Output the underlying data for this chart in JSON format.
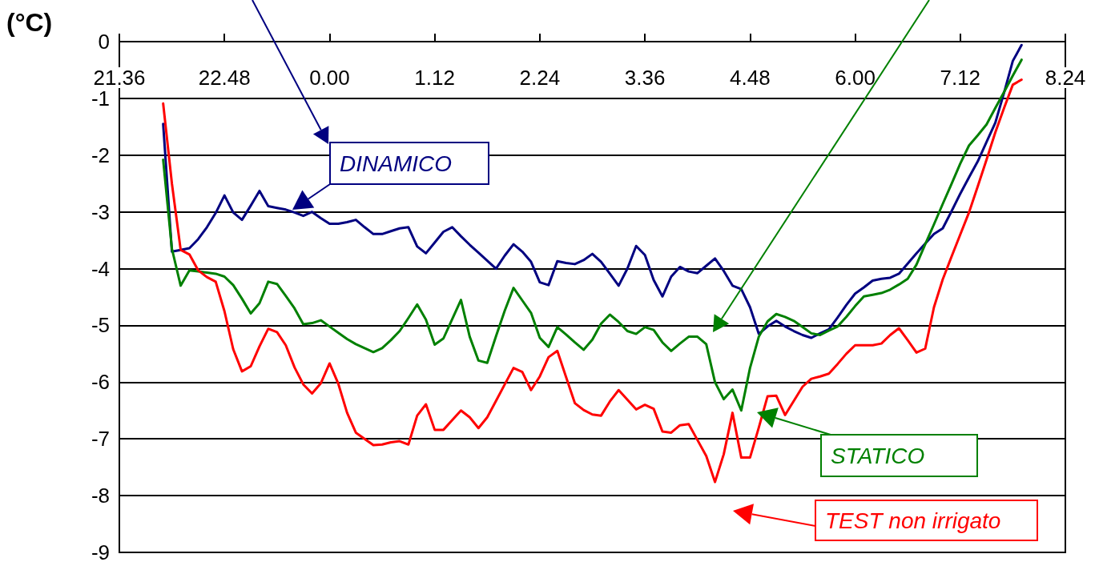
{
  "chart_data": {
    "type": "line",
    "ylabel": "(°C)",
    "categories": [
      "21.36",
      null,
      null,
      null,
      null,
      null,
      null,
      null,
      null,
      null,
      null,
      null,
      "22.48",
      null,
      null,
      null,
      null,
      null,
      null,
      null,
      null,
      null,
      null,
      null,
      "0.00",
      null,
      null,
      null,
      null,
      null,
      null,
      null,
      null,
      null,
      null,
      null,
      "1.12",
      null,
      null,
      null,
      null,
      null,
      null,
      null,
      null,
      null,
      null,
      null,
      "2.24",
      null,
      null,
      null,
      null,
      null,
      null,
      null,
      null,
      null,
      null,
      null,
      "3.36",
      null,
      null,
      null,
      null,
      null,
      null,
      null,
      null,
      null,
      null,
      null,
      "4.48",
      null,
      null,
      null,
      null,
      null,
      null,
      null,
      null,
      null,
      null,
      null,
      "6.00",
      null,
      null,
      null,
      null,
      null,
      null,
      null,
      null,
      null,
      null,
      null,
      "7.12",
      null,
      null,
      null,
      null,
      null,
      null,
      null,
      null,
      null,
      null,
      null,
      "8.24"
    ],
    "ylim": [
      -9,
      0
    ],
    "yticks": [
      0,
      -1,
      -2,
      -3,
      -4,
      -5,
      -6,
      -7,
      -8,
      -9
    ],
    "grid": "y",
    "marker": "none",
    "line_style": "solid",
    "series": [
      {
        "color": "#000080",
        "values": [
          null,
          null,
          null,
          null,
          null,
          -1.45,
          -3.7,
          -3.67,
          -3.64,
          -3.48,
          -3.27,
          -3.02,
          -2.71,
          -3.01,
          -3.14,
          -2.89,
          -2.63,
          -2.9,
          -2.93,
          -2.96,
          -3.01,
          -3.07,
          -3.0,
          -3.11,
          -3.21,
          -3.21,
          -3.18,
          -3.14,
          -3.27,
          -3.39,
          -3.39,
          -3.34,
          -3.29,
          -3.27,
          -3.61,
          -3.73,
          -3.54,
          -3.35,
          -3.27,
          -3.43,
          -3.58,
          -3.72,
          -3.86,
          -4.0,
          -3.77,
          -3.57,
          -3.7,
          -3.88,
          -4.24,
          -4.29,
          -3.87,
          -3.9,
          -3.92,
          -3.85,
          -3.74,
          -3.88,
          -4.09,
          -4.3,
          -4.0,
          -3.6,
          -3.76,
          -4.2,
          -4.49,
          -4.14,
          -3.97,
          -4.05,
          -4.08,
          -3.95,
          -3.82,
          -4.04,
          -4.3,
          -4.36,
          -4.68,
          -5.15,
          -5.02,
          -4.92,
          -5.02,
          -5.1,
          -5.17,
          -5.22,
          -5.14,
          -5.07,
          -4.86,
          -4.64,
          -4.44,
          -4.33,
          -4.21,
          -4.18,
          -4.16,
          -4.09,
          -3.91,
          -3.73,
          -3.56,
          -3.39,
          -3.29,
          -2.99,
          -2.68,
          -2.39,
          -2.11,
          -1.77,
          -1.43,
          -0.9,
          -0.34,
          -0.06,
          null,
          null,
          null,
          null,
          null
        ]
      },
      {
        "color": "#008000",
        "values": [
          null,
          null,
          null,
          null,
          null,
          -2.08,
          -3.65,
          -4.3,
          -4.03,
          -4.05,
          -4.07,
          -4.09,
          -4.14,
          -4.29,
          -4.53,
          -4.79,
          -4.61,
          -4.23,
          -4.27,
          -4.48,
          -4.7,
          -4.98,
          -4.96,
          -4.91,
          -5.02,
          -5.13,
          -5.24,
          -5.33,
          -5.4,
          -5.47,
          -5.4,
          -5.26,
          -5.1,
          -4.87,
          -4.63,
          -4.9,
          -5.34,
          -5.23,
          -4.89,
          -4.55,
          -5.2,
          -5.62,
          -5.66,
          -5.19,
          -4.74,
          -4.34,
          -4.56,
          -4.78,
          -5.22,
          -5.38,
          -5.03,
          -5.16,
          -5.3,
          -5.43,
          -5.25,
          -4.97,
          -4.81,
          -4.94,
          -5.1,
          -5.15,
          -5.03,
          -5.08,
          -5.3,
          -5.45,
          -5.32,
          -5.2,
          -5.2,
          -5.33,
          -6.0,
          -6.3,
          -6.13,
          -6.5,
          -5.75,
          -5.2,
          -4.93,
          -4.8,
          -4.85,
          -4.92,
          -5.03,
          -5.14,
          -5.17,
          -5.09,
          -5.02,
          -4.85,
          -4.66,
          -4.49,
          -4.46,
          -4.43,
          -4.37,
          -4.28,
          -4.18,
          -3.93,
          -3.57,
          -3.22,
          -2.86,
          -2.51,
          -2.15,
          -1.83,
          -1.65,
          -1.46,
          -1.17,
          -0.89,
          -0.6,
          -0.32,
          null,
          null,
          null,
          null,
          null
        ]
      },
      {
        "color": "#ff0000",
        "values": [
          null,
          null,
          null,
          null,
          null,
          -1.09,
          -2.5,
          -3.67,
          -3.75,
          -4.03,
          -4.15,
          -4.23,
          -4.75,
          -5.42,
          -5.81,
          -5.72,
          -5.37,
          -5.06,
          -5.12,
          -5.35,
          -5.74,
          -6.04,
          -6.2,
          -6.02,
          -5.67,
          -6.03,
          -6.54,
          -6.89,
          -7.0,
          -7.11,
          -7.1,
          -7.06,
          -7.04,
          -7.1,
          -6.59,
          -6.39,
          -6.84,
          -6.84,
          -6.67,
          -6.5,
          -6.62,
          -6.81,
          -6.62,
          -6.33,
          -6.04,
          -5.75,
          -5.82,
          -6.14,
          -5.9,
          -5.56,
          -5.45,
          -5.91,
          -6.37,
          -6.49,
          -6.57,
          -6.59,
          -6.34,
          -6.14,
          -6.31,
          -6.48,
          -6.4,
          -6.47,
          -6.87,
          -6.89,
          -6.76,
          -6.74,
          -7.02,
          -7.3,
          -7.76,
          -7.27,
          -6.54,
          -7.33,
          -7.33,
          -6.8,
          -6.25,
          -6.24,
          -6.58,
          -6.33,
          -6.08,
          -5.94,
          -5.9,
          -5.85,
          -5.68,
          -5.5,
          -5.35,
          -5.35,
          -5.35,
          -5.32,
          -5.17,
          -5.05,
          -5.26,
          -5.48,
          -5.41,
          -4.68,
          -4.19,
          -3.79,
          -3.4,
          -3.01,
          -2.55,
          -2.08,
          -1.6,
          -1.17,
          -0.76,
          -0.67,
          null,
          null,
          null,
          null,
          null
        ]
      }
    ],
    "annotations": [
      "DINAMICO",
      "STATICO",
      "TEST non irrigato"
    ]
  }
}
